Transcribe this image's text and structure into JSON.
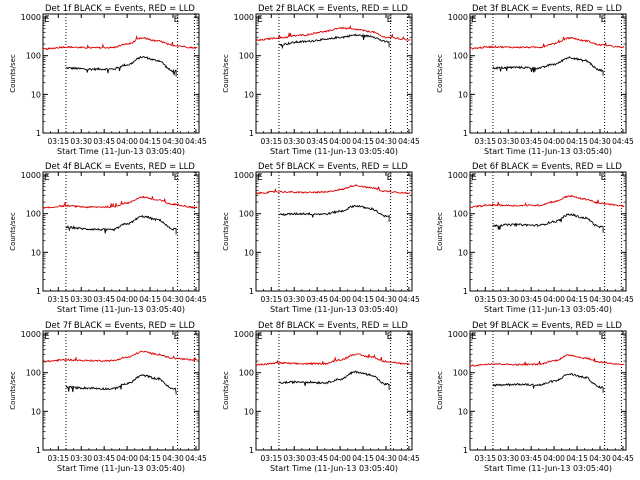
{
  "figure": {
    "panel_title_template": "Det {id}f BLACK = Events, RED = LLD",
    "ylabel": "Counts/sec",
    "xlabel": "Start Time (11-Jun-13 03:05:40)",
    "xtick_labels": [
      "03:15",
      "03:30",
      "03:45",
      "04:00",
      "04:15",
      "04:30",
      "04:45"
    ],
    "ytick_labels": [
      "1",
      "10",
      "100",
      "1000"
    ],
    "corner_marker_labels": [
      "E",
      "E"
    ],
    "colors": {
      "events": "#000000",
      "lld": "#dd0000"
    }
  },
  "chart_data": [
    {
      "type": "line",
      "title": "Det 1f BLACK = Events, RED = LLD",
      "xlabel": "Start Time (11-Jun-13 03:05:40)",
      "ylabel": "Counts/sec",
      "yscale": "log",
      "ylim": [
        1,
        1200
      ],
      "xlim": [
        "03:05",
        "04:47"
      ],
      "xticks": [
        "03:15",
        "03:30",
        "03:45",
        "04:00",
        "04:15",
        "04:30",
        "04:45"
      ],
      "vlines": [
        "03:20",
        "04:33",
        "04:44"
      ],
      "x": [
        "03:05",
        "03:20",
        "03:35",
        "03:50",
        "04:00",
        "04:10",
        "04:20",
        "04:30",
        "04:45"
      ],
      "series": [
        {
          "name": "Events",
          "color": "#000000",
          "x_range": [
            "03:20",
            "04:32"
          ],
          "values": [
            null,
            48,
            45,
            45,
            58,
            92,
            75,
            40,
            null
          ]
        },
        {
          "name": "LLD",
          "color": "#dd0000",
          "x_range": [
            "03:05",
            "04:46"
          ],
          "values": [
            148,
            168,
            160,
            162,
            200,
            285,
            240,
            185,
            160
          ]
        }
      ]
    },
    {
      "type": "line",
      "title": "Det 2f BLACK = Events, RED = LLD",
      "xlabel": "Start Time (11-Jun-13 03:05:40)",
      "ylabel": "Counts/sec",
      "yscale": "log",
      "ylim": [
        1,
        1200
      ],
      "xlim": [
        "03:05",
        "04:47"
      ],
      "xticks": [
        "03:15",
        "03:30",
        "03:45",
        "04:00",
        "04:15",
        "04:30",
        "04:45"
      ],
      "vlines": [
        "03:20",
        "04:33",
        "04:44"
      ],
      "x": [
        "03:05",
        "03:20",
        "03:35",
        "03:50",
        "04:00",
        "04:10",
        "04:20",
        "04:30",
        "04:45"
      ],
      "series": [
        {
          "name": "Events",
          "color": "#000000",
          "x_range": [
            "03:20",
            "04:32"
          ],
          "values": [
            null,
            195,
            230,
            260,
            300,
            340,
            320,
            230,
            null
          ]
        },
        {
          "name": "LLD",
          "color": "#dd0000",
          "x_range": [
            "03:05",
            "04:46"
          ],
          "values": [
            250,
            290,
            340,
            420,
            520,
            480,
            420,
            300,
            260
          ]
        }
      ]
    },
    {
      "type": "line",
      "title": "Det 3f BLACK = Events, RED = LLD",
      "xlabel": "Start Time (11-Jun-13 03:05:40)",
      "ylabel": "Counts/sec",
      "yscale": "log",
      "ylim": [
        1,
        1200
      ],
      "xlim": [
        "03:05",
        "04:47"
      ],
      "xticks": [
        "03:15",
        "03:30",
        "03:45",
        "04:00",
        "04:15",
        "04:30",
        "04:45"
      ],
      "vlines": [
        "03:20",
        "04:33",
        "04:44"
      ],
      "x": [
        "03:05",
        "03:20",
        "03:35",
        "03:50",
        "04:00",
        "04:10",
        "04:20",
        "04:30",
        "04:45"
      ],
      "series": [
        {
          "name": "Events",
          "color": "#000000",
          "x_range": [
            "03:20",
            "04:32"
          ],
          "values": [
            null,
            48,
            50,
            48,
            60,
            90,
            75,
            42,
            null
          ]
        },
        {
          "name": "LLD",
          "color": "#dd0000",
          "x_range": [
            "03:05",
            "04:46"
          ],
          "values": [
            155,
            170,
            165,
            165,
            205,
            290,
            245,
            190,
            165
          ]
        }
      ]
    },
    {
      "type": "line",
      "title": "Det 4f BLACK = Events, RED = LLD",
      "xlabel": "Start Time (11-Jun-13 03:05:40)",
      "ylabel": "Counts/sec",
      "yscale": "log",
      "ylim": [
        1,
        1200
      ],
      "xlim": [
        "03:05",
        "04:47"
      ],
      "xticks": [
        "03:15",
        "03:30",
        "03:45",
        "04:00",
        "04:15",
        "04:30",
        "04:45"
      ],
      "vlines": [
        "03:20",
        "04:33",
        "04:44"
      ],
      "x": [
        "03:05",
        "03:20",
        "03:35",
        "03:50",
        "04:00",
        "04:10",
        "04:20",
        "04:30",
        "04:45"
      ],
      "series": [
        {
          "name": "Events",
          "color": "#000000",
          "x_range": [
            "03:20",
            "04:32"
          ],
          "values": [
            null,
            45,
            40,
            38,
            55,
            85,
            70,
            40,
            null
          ]
        },
        {
          "name": "LLD",
          "color": "#dd0000",
          "x_range": [
            "03:05",
            "04:46"
          ],
          "values": [
            140,
            160,
            148,
            150,
            190,
            270,
            225,
            175,
            145
          ]
        }
      ]
    },
    {
      "type": "line",
      "title": "Det 5f BLACK = Events, RED = LLD",
      "xlabel": "Start Time (11-Jun-13 03:05:40)",
      "ylabel": "Counts/sec",
      "yscale": "log",
      "ylim": [
        1,
        1200
      ],
      "xlim": [
        "03:05",
        "04:47"
      ],
      "xticks": [
        "03:15",
        "03:30",
        "03:45",
        "04:00",
        "04:15",
        "04:30",
        "04:45"
      ],
      "vlines": [
        "03:20",
        "04:33",
        "04:44"
      ],
      "x": [
        "03:05",
        "03:20",
        "03:35",
        "03:50",
        "04:00",
        "04:10",
        "04:20",
        "04:30",
        "04:45"
      ],
      "series": [
        {
          "name": "Events",
          "color": "#000000",
          "x_range": [
            "03:20",
            "04:32"
          ],
          "values": [
            null,
            95,
            100,
            98,
            115,
            160,
            135,
            85,
            null
          ]
        },
        {
          "name": "LLD",
          "color": "#dd0000",
          "x_range": [
            "03:05",
            "04:46"
          ],
          "values": [
            340,
            370,
            355,
            360,
            420,
            540,
            470,
            380,
            340
          ]
        }
      ]
    },
    {
      "type": "line",
      "title": "Det 6f BLACK = Events, RED = LLD",
      "xlabel": "Start Time (11-Jun-13 03:05:40)",
      "ylabel": "Counts/sec",
      "yscale": "log",
      "ylim": [
        1,
        1200
      ],
      "xlim": [
        "03:05",
        "04:47"
      ],
      "xticks": [
        "03:15",
        "03:30",
        "03:45",
        "04:00",
        "04:15",
        "04:30",
        "04:45"
      ],
      "vlines": [
        "03:20",
        "04:33",
        "04:44"
      ],
      "x": [
        "03:05",
        "03:20",
        "03:35",
        "03:50",
        "04:00",
        "04:10",
        "04:20",
        "04:30",
        "04:45"
      ],
      "series": [
        {
          "name": "Events",
          "color": "#000000",
          "x_range": [
            "03:20",
            "04:32"
          ],
          "values": [
            null,
            50,
            52,
            50,
            62,
            95,
            78,
            45,
            null
          ]
        },
        {
          "name": "LLD",
          "color": "#dd0000",
          "x_range": [
            "03:05",
            "04:46"
          ],
          "values": [
            150,
            168,
            162,
            165,
            205,
            285,
            240,
            185,
            160
          ]
        }
      ]
    },
    {
      "type": "line",
      "title": "Det 7f BLACK = Events, RED = LLD",
      "xlabel": "Start Time (11-Jun-13 03:05:40)",
      "ylabel": "Counts/sec",
      "yscale": "log",
      "ylim": [
        1,
        1200
      ],
      "xlim": [
        "03:05",
        "04:47"
      ],
      "xticks": [
        "03:15",
        "03:30",
        "03:45",
        "04:00",
        "04:15",
        "04:30",
        "04:45"
      ],
      "vlines": [
        "03:20",
        "04:33",
        "04:44"
      ],
      "x": [
        "03:05",
        "03:20",
        "03:35",
        "03:50",
        "04:00",
        "04:10",
        "04:20",
        "04:30",
        "04:45"
      ],
      "series": [
        {
          "name": "Events",
          "color": "#000000",
          "x_range": [
            "03:20",
            "04:32"
          ],
          "values": [
            null,
            42,
            40,
            38,
            52,
            85,
            70,
            38,
            null
          ]
        },
        {
          "name": "LLD",
          "color": "#dd0000",
          "x_range": [
            "03:05",
            "04:46"
          ],
          "values": [
            195,
            215,
            205,
            205,
            250,
            350,
            300,
            235,
            210
          ]
        }
      ]
    },
    {
      "type": "line",
      "title": "Det 8f BLACK = Events, RED = LLD",
      "xlabel": "Start Time (11-Jun-13 03:05:40)",
      "ylabel": "Counts/sec",
      "yscale": "log",
      "ylim": [
        1,
        1200
      ],
      "xlim": [
        "03:05",
        "04:47"
      ],
      "xticks": [
        "03:15",
        "03:30",
        "03:45",
        "04:00",
        "04:15",
        "04:30",
        "04:45"
      ],
      "vlines": [
        "03:20",
        "04:33",
        "04:44"
      ],
      "x": [
        "03:05",
        "03:20",
        "03:35",
        "03:50",
        "04:00",
        "04:10",
        "04:20",
        "04:30",
        "04:45"
      ],
      "series": [
        {
          "name": "Events",
          "color": "#000000",
          "x_range": [
            "03:20",
            "04:32"
          ],
          "values": [
            null,
            55,
            58,
            55,
            68,
            105,
            88,
            50,
            null
          ]
        },
        {
          "name": "LLD",
          "color": "#dd0000",
          "x_range": [
            "03:05",
            "04:46"
          ],
          "values": [
            160,
            178,
            170,
            172,
            215,
            300,
            255,
            195,
            165
          ]
        }
      ]
    },
    {
      "type": "line",
      "title": "Det 9f BLACK = Events, RED = LLD",
      "xlabel": "Start Time (11-Jun-13 03:05:40)",
      "ylabel": "Counts/sec",
      "yscale": "log",
      "ylim": [
        1,
        1200
      ],
      "xlim": [
        "03:05",
        "04:47"
      ],
      "xticks": [
        "03:15",
        "03:30",
        "03:45",
        "04:00",
        "04:15",
        "04:30",
        "04:45"
      ],
      "vlines": [
        "03:20",
        "04:33",
        "04:44"
      ],
      "x": [
        "03:05",
        "03:20",
        "03:35",
        "03:50",
        "04:00",
        "04:10",
        "04:20",
        "04:30",
        "04:45"
      ],
      "series": [
        {
          "name": "Events",
          "color": "#000000",
          "x_range": [
            "03:20",
            "04:32"
          ],
          "values": [
            null,
            48,
            50,
            48,
            60,
            92,
            76,
            42,
            null
          ]
        },
        {
          "name": "LLD",
          "color": "#dd0000",
          "x_range": [
            "03:05",
            "04:46"
          ],
          "values": [
            152,
            170,
            162,
            165,
            205,
            285,
            240,
            188,
            160
          ]
        }
      ]
    }
  ]
}
